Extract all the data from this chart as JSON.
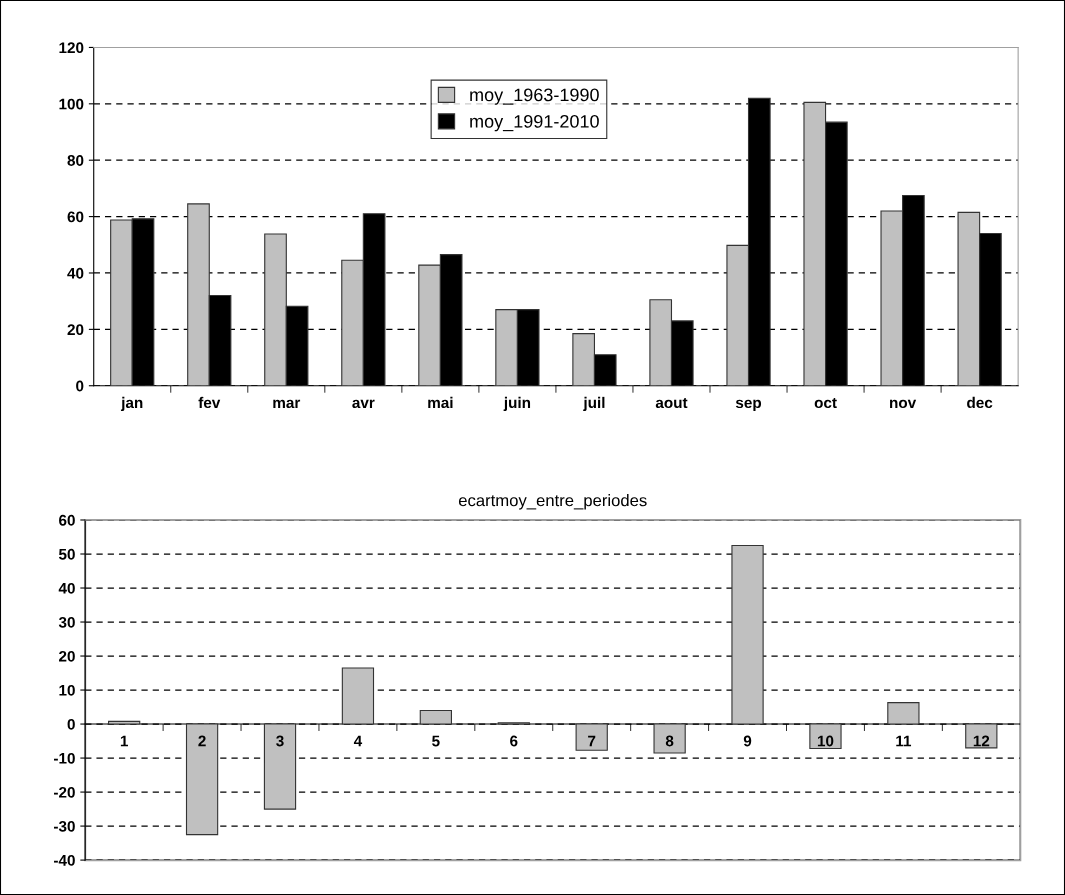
{
  "chart_data": [
    {
      "type": "bar",
      "categories": [
        "jan",
        "fev",
        "mar",
        "avr",
        "mai",
        "juin",
        "juil",
        "aout",
        "sep",
        "oct",
        "nov",
        "dec"
      ],
      "series": [
        {
          "name": "moy_1963-1990",
          "color": "#c0c0c0",
          "values": [
            58.8,
            64.5,
            53.8,
            44.5,
            42.8,
            27,
            18.5,
            30.5,
            49.8,
            100.5,
            62,
            61.5
          ]
        },
        {
          "name": "moy_1991-2010",
          "color": "#000000",
          "values": [
            59.2,
            32,
            28.2,
            61,
            46.5,
            27,
            11,
            23,
            102,
            93.5,
            67.5,
            54
          ]
        }
      ],
      "ylim": [
        0,
        120
      ],
      "yticks": [
        0,
        20,
        40,
        60,
        80,
        100,
        120
      ],
      "grid": "y",
      "legend": "top"
    },
    {
      "type": "bar",
      "title": "ecartmoy_entre_periodes",
      "categories": [
        "1",
        "2",
        "3",
        "4",
        "5",
        "6",
        "7",
        "8",
        "9",
        "10",
        "11",
        "12"
      ],
      "series": [
        {
          "color": "#c0c0c0",
          "values": [
            0.8,
            -32.5,
            -25,
            16.5,
            4,
            0.4,
            -7.7,
            -8.5,
            52.5,
            -7.2,
            6.3,
            -7
          ]
        }
      ],
      "ylim": [
        -40,
        60
      ],
      "yticks": [
        -40,
        -30,
        -20,
        -10,
        0,
        10,
        20,
        30,
        40,
        50,
        60
      ],
      "grid": "y",
      "legend": false
    }
  ]
}
